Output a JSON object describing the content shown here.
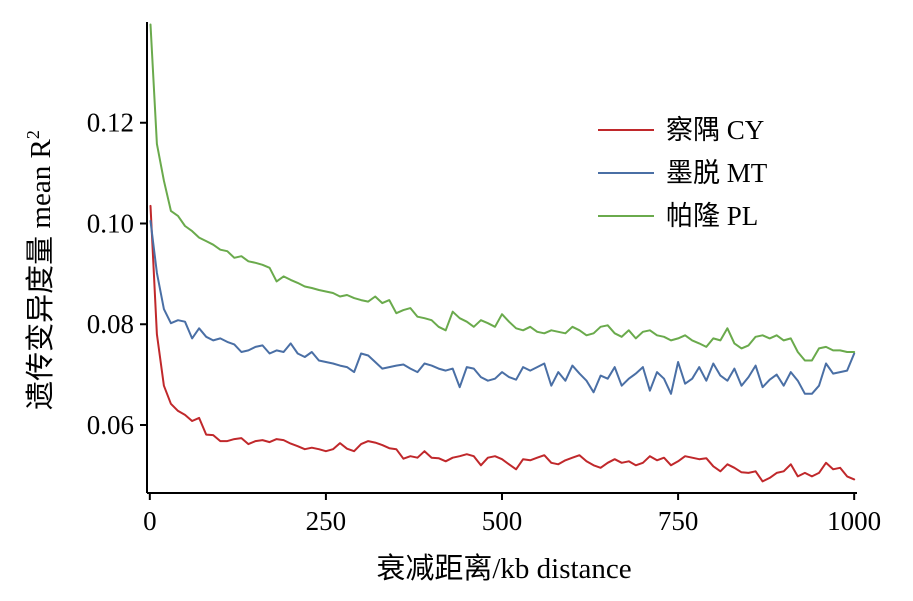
{
  "chart_data": {
    "type": "line",
    "xlabel": "衰减距离/kb distance",
    "ylabel": "遗传变异度量 mean R",
    "ylabel_superscript": "2",
    "xlim": [
      -4,
      1004
    ],
    "ylim": [
      0.0465,
      0.14
    ],
    "xticks": [
      0,
      250,
      500,
      750,
      1000
    ],
    "xtick_labels": [
      "0",
      "250",
      "500",
      "750",
      "1000"
    ],
    "yticks": [
      0.06,
      0.08,
      0.1,
      0.12
    ],
    "ytick_labels": [
      "0.06",
      "0.08",
      "0.10",
      "0.12"
    ],
    "grid": false,
    "legend_position": "top-right",
    "series": [
      {
        "name": "察隅 CY",
        "color": "#c0282b",
        "x": [
          1,
          10,
          20,
          30,
          40,
          50,
          60,
          70,
          80,
          90,
          100,
          110,
          120,
          130,
          140,
          150,
          160,
          170,
          180,
          190,
          200,
          210,
          220,
          230,
          240,
          250,
          260,
          270,
          280,
          290,
          300,
          310,
          320,
          330,
          340,
          350,
          360,
          370,
          380,
          390,
          400,
          410,
          420,
          430,
          440,
          450,
          460,
          470,
          480,
          490,
          500,
          510,
          520,
          530,
          540,
          550,
          560,
          570,
          580,
          590,
          600,
          610,
          620,
          630,
          640,
          650,
          660,
          670,
          680,
          690,
          700,
          710,
          720,
          730,
          740,
          750,
          760,
          770,
          780,
          790,
          800,
          810,
          820,
          830,
          840,
          850,
          860,
          870,
          880,
          890,
          900,
          910,
          920,
          930,
          940,
          950,
          960,
          970,
          980,
          990,
          1000
        ],
        "values": [
          0.1035,
          0.078,
          0.0678,
          0.0642,
          0.0628,
          0.062,
          0.0608,
          0.0614,
          0.0581,
          0.058,
          0.0568,
          0.0568,
          0.0572,
          0.0574,
          0.0562,
          0.0568,
          0.057,
          0.0566,
          0.0572,
          0.057,
          0.0563,
          0.0558,
          0.0552,
          0.0555,
          0.0552,
          0.0548,
          0.0552,
          0.0564,
          0.0553,
          0.0548,
          0.0562,
          0.0568,
          0.0565,
          0.056,
          0.0554,
          0.0552,
          0.0533,
          0.0538,
          0.0535,
          0.0548,
          0.0535,
          0.0534,
          0.0528,
          0.0535,
          0.0538,
          0.0542,
          0.0538,
          0.052,
          0.0535,
          0.0538,
          0.0532,
          0.0522,
          0.0512,
          0.0532,
          0.053,
          0.0535,
          0.054,
          0.0525,
          0.0522,
          0.053,
          0.0535,
          0.054,
          0.0528,
          0.052,
          0.0515,
          0.0525,
          0.0532,
          0.0525,
          0.0528,
          0.052,
          0.0525,
          0.0538,
          0.053,
          0.0535,
          0.052,
          0.0528,
          0.0538,
          0.0535,
          0.0532,
          0.0534,
          0.0518,
          0.0508,
          0.0522,
          0.0515,
          0.0506,
          0.0505,
          0.0508,
          0.0488,
          0.0495,
          0.0505,
          0.0508,
          0.0522,
          0.0498,
          0.0505,
          0.0498,
          0.0505,
          0.0525,
          0.0512,
          0.0515,
          0.0498,
          0.0492
        ]
      },
      {
        "name": "墨脱 MT",
        "color": "#4a6fa5",
        "x": [
          1,
          10,
          20,
          30,
          40,
          50,
          60,
          70,
          80,
          90,
          100,
          110,
          120,
          130,
          140,
          150,
          160,
          170,
          180,
          190,
          200,
          210,
          220,
          230,
          240,
          250,
          260,
          270,
          280,
          290,
          300,
          310,
          320,
          330,
          340,
          350,
          360,
          370,
          380,
          390,
          400,
          410,
          420,
          430,
          440,
          450,
          460,
          470,
          480,
          490,
          500,
          510,
          520,
          530,
          540,
          550,
          560,
          570,
          580,
          590,
          600,
          610,
          620,
          630,
          640,
          650,
          660,
          670,
          680,
          690,
          700,
          710,
          720,
          730,
          740,
          750,
          760,
          770,
          780,
          790,
          800,
          810,
          820,
          830,
          840,
          850,
          860,
          870,
          880,
          890,
          900,
          910,
          920,
          930,
          940,
          950,
          960,
          970,
          980,
          990,
          1000
        ],
        "values": [
          0.1005,
          0.0902,
          0.083,
          0.0802,
          0.0808,
          0.0805,
          0.0772,
          0.0792,
          0.0775,
          0.0768,
          0.0772,
          0.0765,
          0.076,
          0.0745,
          0.0748,
          0.0755,
          0.0758,
          0.0742,
          0.0748,
          0.0745,
          0.0762,
          0.0742,
          0.0735,
          0.0745,
          0.0728,
          0.0725,
          0.0722,
          0.0718,
          0.0715,
          0.0705,
          0.0742,
          0.0738,
          0.0725,
          0.0712,
          0.0715,
          0.0718,
          0.072,
          0.0712,
          0.0705,
          0.0722,
          0.0718,
          0.0712,
          0.0708,
          0.0712,
          0.0675,
          0.0715,
          0.0712,
          0.0695,
          0.0688,
          0.0692,
          0.0705,
          0.0695,
          0.069,
          0.0715,
          0.0708,
          0.0715,
          0.0722,
          0.0678,
          0.0705,
          0.0688,
          0.0718,
          0.0702,
          0.0688,
          0.0665,
          0.0698,
          0.0692,
          0.0715,
          0.0678,
          0.0692,
          0.0702,
          0.0715,
          0.0668,
          0.0705,
          0.0692,
          0.0662,
          0.0725,
          0.0682,
          0.0692,
          0.0715,
          0.0688,
          0.0722,
          0.0698,
          0.0688,
          0.0712,
          0.0678,
          0.0695,
          0.0718,
          0.0675,
          0.069,
          0.07,
          0.0678,
          0.0705,
          0.0688,
          0.0662,
          0.0662,
          0.0678,
          0.0722,
          0.0702,
          0.0705,
          0.0708,
          0.0742
        ]
      },
      {
        "name": "帕隆 PL",
        "color": "#6aaa4c",
        "x": [
          1,
          10,
          20,
          30,
          40,
          50,
          60,
          70,
          80,
          90,
          100,
          110,
          120,
          130,
          140,
          150,
          160,
          170,
          180,
          190,
          200,
          210,
          220,
          230,
          240,
          250,
          260,
          270,
          280,
          290,
          300,
          310,
          320,
          330,
          340,
          350,
          360,
          370,
          380,
          390,
          400,
          410,
          420,
          430,
          440,
          450,
          460,
          470,
          480,
          490,
          500,
          510,
          520,
          530,
          540,
          550,
          560,
          570,
          580,
          590,
          600,
          610,
          620,
          630,
          640,
          650,
          660,
          670,
          680,
          690,
          700,
          710,
          720,
          730,
          740,
          750,
          760,
          770,
          780,
          790,
          800,
          810,
          820,
          830,
          840,
          850,
          860,
          870,
          880,
          890,
          900,
          910,
          920,
          930,
          940,
          950,
          960,
          970,
          980,
          990,
          1000
        ],
        "values": [
          0.1395,
          0.1158,
          0.1085,
          0.1025,
          0.1015,
          0.0995,
          0.0985,
          0.0972,
          0.0965,
          0.0958,
          0.0948,
          0.0945,
          0.0932,
          0.0935,
          0.0925,
          0.0922,
          0.0918,
          0.0912,
          0.0885,
          0.0895,
          0.0888,
          0.0882,
          0.0875,
          0.0872,
          0.0868,
          0.0865,
          0.0862,
          0.0855,
          0.0858,
          0.0852,
          0.0848,
          0.0845,
          0.0855,
          0.0842,
          0.0848,
          0.0822,
          0.0828,
          0.0832,
          0.0815,
          0.0812,
          0.0808,
          0.0795,
          0.0788,
          0.0825,
          0.0812,
          0.0805,
          0.0795,
          0.0808,
          0.0802,
          0.0795,
          0.082,
          0.0805,
          0.0792,
          0.0788,
          0.0795,
          0.0785,
          0.0782,
          0.0788,
          0.0785,
          0.0782,
          0.0795,
          0.0788,
          0.0778,
          0.0782,
          0.0795,
          0.0798,
          0.0782,
          0.0775,
          0.0788,
          0.0772,
          0.0785,
          0.0788,
          0.0778,
          0.0775,
          0.0768,
          0.0772,
          0.0778,
          0.0768,
          0.0762,
          0.0755,
          0.0772,
          0.0768,
          0.0792,
          0.0762,
          0.0752,
          0.0758,
          0.0775,
          0.0778,
          0.0772,
          0.0778,
          0.0768,
          0.0772,
          0.0745,
          0.0728,
          0.0728,
          0.0752,
          0.0755,
          0.0748,
          0.0748,
          0.0745,
          0.0745
        ]
      }
    ]
  }
}
